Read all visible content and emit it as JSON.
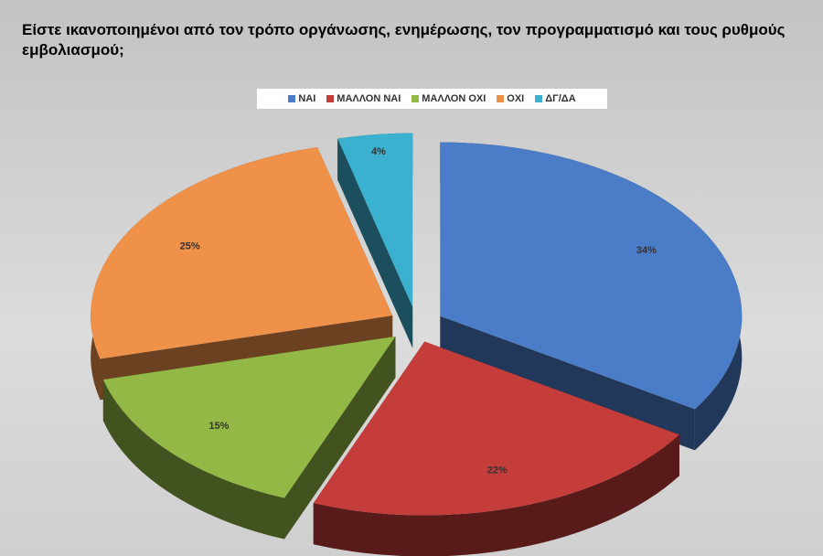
{
  "chart_data": {
    "type": "pie",
    "title": "Είστε ικανοποιημένοι από τον τρόπο οργάνωσης, ενημέρωσης, τον προγραμματισμό  και τους ρυθμούς εμβολιασμού;",
    "categories": [
      "ΝΑΙ",
      "ΜΑΛΛΟΝ ΝΑΙ",
      "ΜΑΛΛΟΝ ΟΧΙ",
      "ΟΧΙ",
      "ΔΓ/ΔΑ"
    ],
    "values": [
      34,
      22,
      15,
      25,
      4
    ],
    "value_labels": [
      "34%",
      "22%",
      "15%",
      "25%",
      "4%"
    ],
    "colors": [
      "#4a7cc7",
      "#c43d3a",
      "#93b845",
      "#f0914a",
      "#3bb0cf"
    ],
    "legend": "top"
  }
}
